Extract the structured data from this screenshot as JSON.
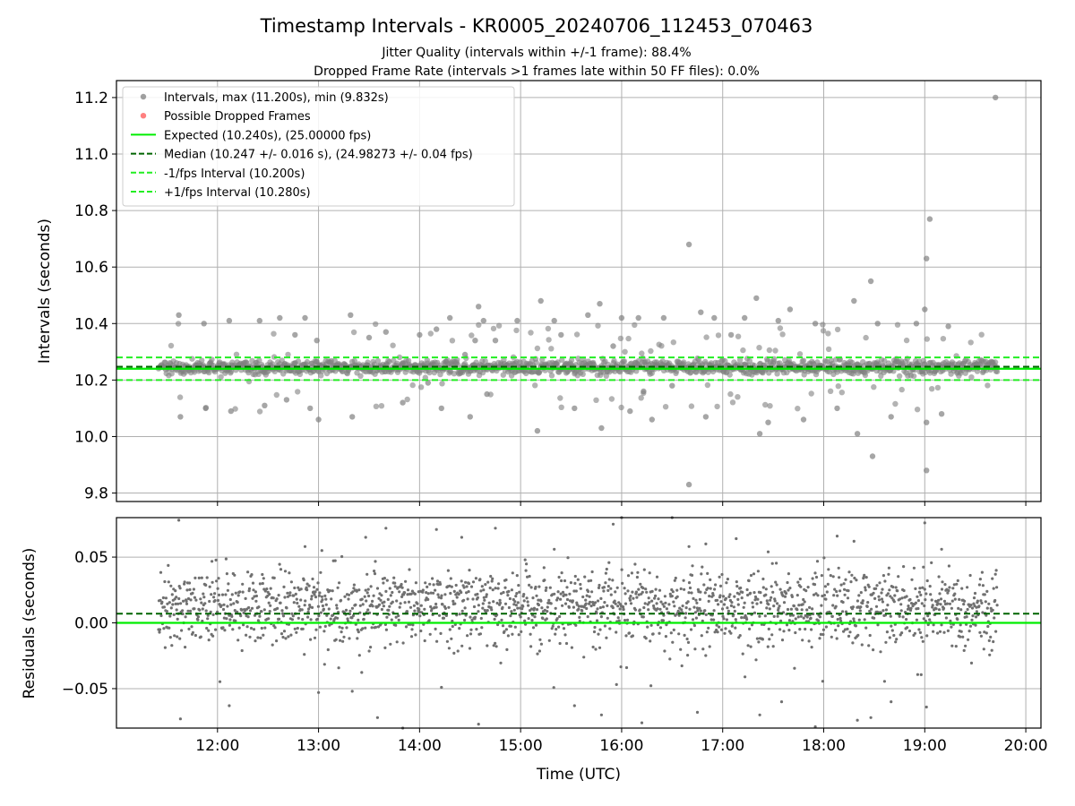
{
  "figure": {
    "title": "Timestamp Intervals - KR0005_20240706_112453_070463",
    "subtitle_1": "Jitter Quality (intervals within +/-1 frame): 88.4%",
    "subtitle_2": "Dropped Frame Rate (intervals >1 frames late within 50 FF files): 0.0%"
  },
  "colors": {
    "points": "#808080",
    "dropped": "#ff5555",
    "expected": "#00ee00",
    "median": "#006400",
    "fps_band": "#22ee22",
    "grid": "#b0b0b0"
  },
  "chart_data": [
    {
      "type": "scatter",
      "ylabel": "Intervals (seconds)",
      "ylim": [
        9.77,
        11.26
      ],
      "xlim_hours": [
        11.0,
        20.15
      ],
      "yticks": [
        9.8,
        10.0,
        10.2,
        10.4,
        10.6,
        10.8,
        11.0,
        11.2
      ],
      "ytick_labels": [
        "9.8",
        "10.0",
        "10.2",
        "10.4",
        "10.6",
        "10.8",
        "11.0",
        "11.2"
      ],
      "grid": true,
      "legend_position": "top-left",
      "reference_lines": [
        {
          "name": "Expected (10.240s), (25.00000 fps)",
          "y": 10.24,
          "style": "solid"
        },
        {
          "name": "Median (10.247 +/- 0.016 s), (24.98273 +/- 0.04 fps)",
          "y": 10.247,
          "style": "dashed"
        },
        {
          "name": "-1/fps Interval (10.200s)",
          "y": 10.2,
          "style": "dashed"
        },
        {
          "name": "+1/fps Interval (10.280s)",
          "y": 10.28,
          "style": "dashed"
        }
      ],
      "series": [
        {
          "name": "Intervals, max (11.200s), min (9.832s)",
          "marker": "circle"
        },
        {
          "name": "Possible Dropped Frames",
          "marker": "circle"
        }
      ],
      "time_range": [
        "11:25",
        "19:43"
      ],
      "bulk_band": [
        10.225,
        10.265
      ],
      "outliers": [
        {
          "x": "11:37",
          "y": 10.43
        },
        {
          "x": "11:38",
          "y": 10.07
        },
        {
          "x": "11:52",
          "y": 10.4
        },
        {
          "x": "11:53",
          "y": 10.1
        },
        {
          "x": "12:07",
          "y": 10.41
        },
        {
          "x": "12:08",
          "y": 10.09
        },
        {
          "x": "12:25",
          "y": 10.41
        },
        {
          "x": "12:28",
          "y": 10.11
        },
        {
          "x": "12:37",
          "y": 10.42
        },
        {
          "x": "12:41",
          "y": 10.13
        },
        {
          "x": "12:46",
          "y": 10.36
        },
        {
          "x": "12:52",
          "y": 10.42
        },
        {
          "x": "12:55",
          "y": 10.1
        },
        {
          "x": "12:59",
          "y": 10.34
        },
        {
          "x": "13:00",
          "y": 10.06
        },
        {
          "x": "13:19",
          "y": 10.43
        },
        {
          "x": "13:20",
          "y": 10.07
        },
        {
          "x": "13:30",
          "y": 10.35
        },
        {
          "x": "13:40",
          "y": 10.37
        },
        {
          "x": "13:50",
          "y": 10.12
        },
        {
          "x": "14:00",
          "y": 10.36
        },
        {
          "x": "14:05",
          "y": 10.19
        },
        {
          "x": "14:10",
          "y": 10.38
        },
        {
          "x": "14:13",
          "y": 10.1
        },
        {
          "x": "14:18",
          "y": 10.42
        },
        {
          "x": "14:27",
          "y": 10.29
        },
        {
          "x": "14:30",
          "y": 10.07
        },
        {
          "x": "14:33",
          "y": 10.34
        },
        {
          "x": "14:35",
          "y": 10.46
        },
        {
          "x": "14:38",
          "y": 10.41
        },
        {
          "x": "14:40",
          "y": 10.15
        },
        {
          "x": "14:45",
          "y": 10.34
        },
        {
          "x": "14:58",
          "y": 10.41
        },
        {
          "x": "15:10",
          "y": 10.02
        },
        {
          "x": "15:12",
          "y": 10.48
        },
        {
          "x": "15:20",
          "y": 10.41
        },
        {
          "x": "15:24",
          "y": 10.36
        },
        {
          "x": "15:32",
          "y": 10.1
        },
        {
          "x": "15:40",
          "y": 10.43
        },
        {
          "x": "15:47",
          "y": 10.47
        },
        {
          "x": "15:48",
          "y": 10.03
        },
        {
          "x": "15:55",
          "y": 10.32
        },
        {
          "x": "16:00",
          "y": 10.42
        },
        {
          "x": "16:05",
          "y": 10.09
        },
        {
          "x": "16:10",
          "y": 10.42
        },
        {
          "x": "16:13",
          "y": 10.16
        },
        {
          "x": "16:18",
          "y": 10.06
        },
        {
          "x": "16:25",
          "y": 10.42
        },
        {
          "x": "16:30",
          "y": 10.18
        },
        {
          "x": "16:40",
          "y": 10.68
        },
        {
          "x": "16:40",
          "y": 9.83
        },
        {
          "x": "16:47",
          "y": 10.44
        },
        {
          "x": "16:50",
          "y": 10.07
        },
        {
          "x": "16:55",
          "y": 10.42
        },
        {
          "x": "17:05",
          "y": 10.36
        },
        {
          "x": "17:13",
          "y": 10.42
        },
        {
          "x": "17:20",
          "y": 10.49
        },
        {
          "x": "17:22",
          "y": 10.01
        },
        {
          "x": "17:27",
          "y": 10.05
        },
        {
          "x": "17:33",
          "y": 10.41
        },
        {
          "x": "17:40",
          "y": 10.45
        },
        {
          "x": "17:48",
          "y": 10.06
        },
        {
          "x": "17:55",
          "y": 10.4
        },
        {
          "x": "18:08",
          "y": 10.1
        },
        {
          "x": "18:18",
          "y": 10.48
        },
        {
          "x": "18:20",
          "y": 10.01
        },
        {
          "x": "18:28",
          "y": 10.55
        },
        {
          "x": "18:29",
          "y": 9.93
        },
        {
          "x": "18:32",
          "y": 10.4
        },
        {
          "x": "18:40",
          "y": 10.07
        },
        {
          "x": "18:55",
          "y": 10.4
        },
        {
          "x": "19:00",
          "y": 10.45
        },
        {
          "x": "19:01",
          "y": 10.63
        },
        {
          "x": "19:01",
          "y": 9.88
        },
        {
          "x": "19:01",
          "y": 10.05
        },
        {
          "x": "19:03",
          "y": 10.77
        },
        {
          "x": "19:10",
          "y": 10.08
        },
        {
          "x": "19:14",
          "y": 10.39
        },
        {
          "x": "19:42",
          "y": 11.2
        }
      ]
    },
    {
      "type": "scatter",
      "ylabel": "Residuals (seconds)",
      "xlabel": "Time (UTC)",
      "ylim": [
        -0.08,
        0.08
      ],
      "xlim_hours": [
        11.0,
        20.15
      ],
      "yticks": [
        -0.05,
        0.0,
        0.05
      ],
      "ytick_labels": [
        "−0.05",
        "0.00",
        "0.05"
      ],
      "xticks": [
        "12:00",
        "13:00",
        "14:00",
        "15:00",
        "16:00",
        "17:00",
        "18:00",
        "19:00",
        "20:00"
      ],
      "grid": true,
      "reference_lines": [
        {
          "y": 0.0,
          "style": "solid"
        },
        {
          "y": 0.007,
          "style": "dashed"
        }
      ],
      "time_range": [
        "11:25",
        "19:43"
      ],
      "bulk_residual_range": [
        -0.03,
        0.04
      ],
      "outliers": [
        {
          "x": "11:37",
          "y": 0.078
        },
        {
          "x": "11:38",
          "y": -0.073
        },
        {
          "x": "12:07",
          "y": -0.063
        },
        {
          "x": "12:52",
          "y": 0.058
        },
        {
          "x": "13:00",
          "y": -0.053
        },
        {
          "x": "13:02",
          "y": 0.055
        },
        {
          "x": "13:20",
          "y": -0.052
        },
        {
          "x": "13:28",
          "y": 0.065
        },
        {
          "x": "13:35",
          "y": -0.072
        },
        {
          "x": "13:40",
          "y": 0.072
        },
        {
          "x": "13:50",
          "y": -0.08
        },
        {
          "x": "14:10",
          "y": 0.071
        },
        {
          "x": "14:13",
          "y": -0.049
        },
        {
          "x": "14:25",
          "y": 0.065
        },
        {
          "x": "14:35",
          "y": -0.077
        },
        {
          "x": "14:45",
          "y": 0.072
        },
        {
          "x": "15:20",
          "y": 0.056
        },
        {
          "x": "15:32",
          "y": -0.063
        },
        {
          "x": "15:48",
          "y": -0.07
        },
        {
          "x": "15:55",
          "y": 0.075
        },
        {
          "x": "16:00",
          "y": 0.08
        },
        {
          "x": "16:12",
          "y": -0.076
        },
        {
          "x": "16:30",
          "y": 0.08
        },
        {
          "x": "16:40",
          "y": 0.058
        },
        {
          "x": "16:45",
          "y": -0.068
        },
        {
          "x": "16:50",
          "y": 0.06
        },
        {
          "x": "17:08",
          "y": 0.064
        },
        {
          "x": "17:22",
          "y": -0.07
        },
        {
          "x": "17:27",
          "y": 0.054
        },
        {
          "x": "17:35",
          "y": -0.06
        },
        {
          "x": "17:55",
          "y": -0.079
        },
        {
          "x": "18:08",
          "y": 0.066
        },
        {
          "x": "18:18",
          "y": 0.062
        },
        {
          "x": "18:20",
          "y": -0.074
        },
        {
          "x": "18:28",
          "y": -0.072
        },
        {
          "x": "18:40",
          "y": -0.06
        },
        {
          "x": "19:00",
          "y": 0.076
        },
        {
          "x": "19:01",
          "y": -0.064
        },
        {
          "x": "19:10",
          "y": 0.056
        }
      ]
    }
  ],
  "legend": {
    "items": [
      {
        "label": "Intervals, max (11.200s), min (9.832s)",
        "kind": "marker",
        "color": "#808080"
      },
      {
        "label": "Possible Dropped Frames",
        "kind": "marker",
        "color": "#ff5555"
      },
      {
        "label": "Expected (10.240s), (25.00000 fps)",
        "kind": "solid",
        "color": "#00ee00"
      },
      {
        "label": "Median (10.247 +/- 0.016 s), (24.98273 +/- 0.04 fps)",
        "kind": "dashed",
        "color": "#006400"
      },
      {
        "label": "-1/fps Interval (10.200s)",
        "kind": "dashed",
        "color": "#22ee22"
      },
      {
        "label": "+1/fps Interval (10.280s)",
        "kind": "dashed",
        "color": "#22ee22"
      }
    ]
  }
}
